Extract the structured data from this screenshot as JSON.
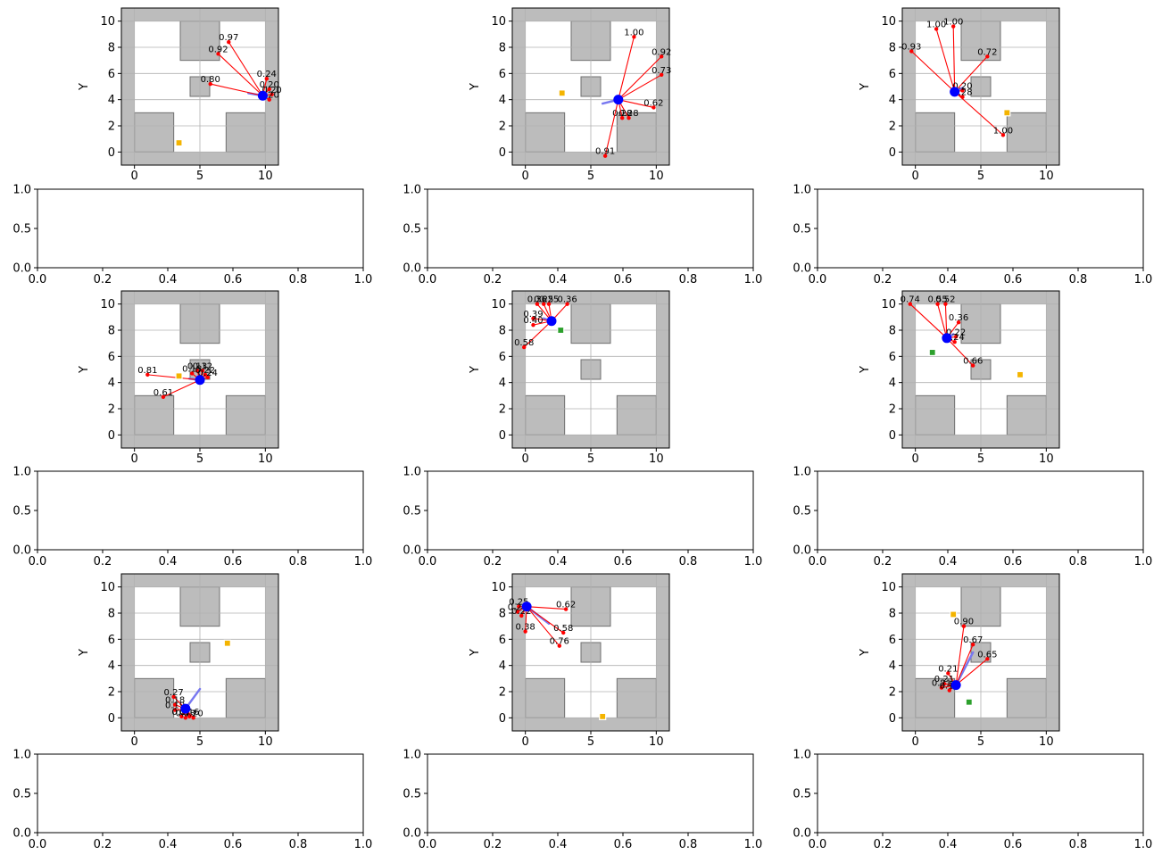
{
  "chart_data": [
    {
      "type": "scatter",
      "xlabel": "",
      "ylabel": "Y",
      "xlim": [
        -1,
        11
      ],
      "ylim": [
        -1,
        11
      ],
      "xticks": [
        0,
        5,
        10
      ],
      "yticks": [
        0,
        2,
        4,
        6,
        8,
        10
      ],
      "grid": true,
      "robot": {
        "x": 9.8,
        "y": 4.3,
        "heading": [
          8.7,
          4.5
        ]
      },
      "goal": {
        "x": 3.4,
        "y": 0.7,
        "color": "#f4b400"
      },
      "waypoint": null,
      "rays": [
        {
          "x": 7.2,
          "y": 8.4,
          "label": "0.97"
        },
        {
          "x": 6.4,
          "y": 7.5,
          "label": "0.92"
        },
        {
          "x": 5.8,
          "y": 5.2,
          "label": "0.80"
        },
        {
          "x": 10.1,
          "y": 5.6,
          "label": "0.24"
        },
        {
          "x": 10.3,
          "y": 4.8,
          "label": "0.20"
        },
        {
          "x": 10.5,
          "y": 4.4,
          "label": "0.20"
        },
        {
          "x": 10.3,
          "y": 4.0,
          "label": "0.20"
        }
      ]
    },
    {
      "type": "scatter",
      "xlabel": "",
      "ylabel": "Y",
      "xlim": [
        -1,
        11
      ],
      "ylim": [
        -1,
        11
      ],
      "xticks": [
        0,
        5,
        10
      ],
      "yticks": [
        0,
        2,
        4,
        6,
        8,
        10
      ],
      "grid": true,
      "robot": {
        "x": 7.1,
        "y": 4.0,
        "heading": [
          5.9,
          3.7
        ]
      },
      "goal": {
        "x": 2.8,
        "y": 4.5,
        "color": "#f4b400"
      },
      "waypoint": null,
      "rays": [
        {
          "x": 8.3,
          "y": 8.8,
          "label": "1.00"
        },
        {
          "x": 10.4,
          "y": 7.3,
          "label": "0.92"
        },
        {
          "x": 10.4,
          "y": 5.9,
          "label": "0.73"
        },
        {
          "x": 9.8,
          "y": 3.4,
          "label": "0.62"
        },
        {
          "x": 7.9,
          "y": 2.6,
          "label": "0.28"
        },
        {
          "x": 7.4,
          "y": 2.6,
          "label": "0.28"
        },
        {
          "x": 6.1,
          "y": -0.3,
          "label": "0.91"
        }
      ]
    },
    {
      "type": "scatter",
      "xlabel": "",
      "ylabel": "Y",
      "xlim": [
        -1,
        11
      ],
      "ylim": [
        -1,
        11
      ],
      "xticks": [
        0,
        5,
        10
      ],
      "yticks": [
        0,
        2,
        4,
        6,
        8,
        10
      ],
      "grid": true,
      "robot": {
        "x": 3.0,
        "y": 4.6,
        "heading": [
          3.6,
          4.9
        ]
      },
      "goal": {
        "x": 7.0,
        "y": 3.0,
        "color": "#f4b400"
      },
      "waypoint": null,
      "rays": [
        {
          "x": 2.9,
          "y": 9.6,
          "label": "1.00"
        },
        {
          "x": 1.6,
          "y": 9.4,
          "label": "1.00"
        },
        {
          "x": -0.3,
          "y": 7.7,
          "label": "0.93"
        },
        {
          "x": 5.5,
          "y": 7.3,
          "label": "0.72"
        },
        {
          "x": 3.6,
          "y": 4.7,
          "label": "0.20"
        },
        {
          "x": 3.6,
          "y": 4.2,
          "label": "0.28"
        },
        {
          "x": 6.7,
          "y": 1.3,
          "label": "1.00"
        }
      ]
    },
    {
      "type": "scatter",
      "xlabel": "",
      "ylabel": "Y",
      "xlim": [
        -1,
        11
      ],
      "ylim": [
        -1,
        11
      ],
      "xticks": [
        0,
        5,
        10
      ],
      "yticks": [
        0,
        2,
        4,
        6,
        8,
        10
      ],
      "grid": true,
      "robot": {
        "x": 5.0,
        "y": 4.2,
        "heading": [
          4.2,
          4.3
        ]
      },
      "goal": {
        "x": 3.4,
        "y": 4.5,
        "color": "#f4b400"
      },
      "waypoint": null,
      "rays": [
        {
          "x": 1.0,
          "y": 4.6,
          "label": "0.81"
        },
        {
          "x": 2.2,
          "y": 2.9,
          "label": "0.61"
        },
        {
          "x": 4.4,
          "y": 4.7,
          "label": "0.18"
        },
        {
          "x": 4.8,
          "y": 4.9,
          "label": "0.13"
        },
        {
          "x": 5.2,
          "y": 4.9,
          "label": "0.12"
        },
        {
          "x": 5.4,
          "y": 4.6,
          "label": "0.22"
        },
        {
          "x": 5.6,
          "y": 4.4,
          "label": "0.24"
        }
      ]
    },
    {
      "type": "scatter",
      "xlabel": "",
      "ylabel": "Y",
      "xlim": [
        -1,
        11
      ],
      "ylim": [
        -1,
        11
      ],
      "xticks": [
        0,
        5,
        10
      ],
      "yticks": [
        0,
        2,
        4,
        6,
        8,
        10
      ],
      "grid": true,
      "robot": {
        "x": 2.0,
        "y": 8.7,
        "heading": [
          1.4,
          8.9
        ]
      },
      "goal": {
        "x": null,
        "y": null,
        "color": "#f4b400"
      },
      "waypoint": {
        "x": 2.7,
        "y": 8.0,
        "color": "#2ca02c"
      },
      "rays": [
        {
          "x": 0.9,
          "y": 10.0,
          "label": "0.36"
        },
        {
          "x": 1.4,
          "y": 10.0,
          "label": "0.25"
        },
        {
          "x": 1.8,
          "y": 10.0,
          "label": "0.25"
        },
        {
          "x": 3.2,
          "y": 10.0,
          "label": "0.36"
        },
        {
          "x": 0.6,
          "y": 8.9,
          "label": "0.39"
        },
        {
          "x": 0.6,
          "y": 8.4,
          "label": "0.40"
        },
        {
          "x": -0.1,
          "y": 6.7,
          "label": "0.58"
        }
      ]
    },
    {
      "type": "scatter",
      "xlabel": "",
      "ylabel": "Y",
      "xlim": [
        -1,
        11
      ],
      "ylim": [
        -1,
        11
      ],
      "xticks": [
        0,
        5,
        10
      ],
      "yticks": [
        0,
        2,
        4,
        6,
        8,
        10
      ],
      "grid": true,
      "robot": {
        "x": 2.4,
        "y": 7.4,
        "heading": [
          2.9,
          7.7
        ]
      },
      "goal": {
        "x": 8.0,
        "y": 4.6,
        "color": "#f4b400"
      },
      "waypoint": {
        "x": 1.3,
        "y": 6.3,
        "color": "#2ca02c"
      },
      "rays": [
        {
          "x": -0.4,
          "y": 10.0,
          "label": "0.74"
        },
        {
          "x": 1.7,
          "y": 10.0,
          "label": "0.55"
        },
        {
          "x": 2.3,
          "y": 10.0,
          "label": "0.52"
        },
        {
          "x": 3.3,
          "y": 8.6,
          "label": "0.36"
        },
        {
          "x": 3.1,
          "y": 7.5,
          "label": "0.22"
        },
        {
          "x": 3.0,
          "y": 7.1,
          "label": "0.24"
        },
        {
          "x": 4.4,
          "y": 5.3,
          "label": "0.66"
        }
      ]
    },
    {
      "type": "scatter",
      "xlabel": "",
      "ylabel": "Y",
      "xlim": [
        -1,
        11
      ],
      "ylim": [
        -1,
        11
      ],
      "xticks": [
        0,
        5,
        10
      ],
      "yticks": [
        0,
        2,
        4,
        6,
        8,
        10
      ],
      "grid": true,
      "robot": {
        "x": 3.9,
        "y": 0.7,
        "heading": [
          5.0,
          2.2
        ]
      },
      "goal": {
        "x": 7.1,
        "y": 5.7,
        "color": "#f4b400"
      },
      "waypoint": null,
      "rays": [
        {
          "x": 3.0,
          "y": 1.6,
          "label": "0.27"
        },
        {
          "x": 3.1,
          "y": 1.0,
          "label": "0.18"
        },
        {
          "x": 3.1,
          "y": 0.6,
          "label": "0.19"
        },
        {
          "x": 3.6,
          "y": 0.1,
          "label": "0.21"
        },
        {
          "x": 3.9,
          "y": 0.0,
          "label": "0.18"
        },
        {
          "x": 4.2,
          "y": 0.1,
          "label": "0.16"
        },
        {
          "x": 4.5,
          "y": 0.0,
          "label": "0.20"
        }
      ]
    },
    {
      "type": "scatter",
      "xlabel": "",
      "ylabel": "Y",
      "xlim": [
        -1,
        11
      ],
      "ylim": [
        -1,
        11
      ],
      "xticks": [
        0,
        5,
        10
      ],
      "yticks": [
        0,
        2,
        4,
        6,
        8,
        10
      ],
      "grid": true,
      "robot": {
        "x": 0.1,
        "y": 8.5,
        "heading": [
          1.8,
          7.2
        ]
      },
      "goal": {
        "x": 5.9,
        "y": 0.1,
        "color": "#f4b400"
      },
      "waypoint": null,
      "rays": [
        {
          "x": -0.5,
          "y": 8.5,
          "label": "0.25"
        },
        {
          "x": -0.6,
          "y": 8.1,
          "label": "0.26"
        },
        {
          "x": -0.3,
          "y": 7.8,
          "label": "0.22"
        },
        {
          "x": 0.0,
          "y": 6.6,
          "label": "0.38"
        },
        {
          "x": 3.1,
          "y": 8.3,
          "label": "0.62"
        },
        {
          "x": 2.9,
          "y": 6.5,
          "label": "0.58"
        },
        {
          "x": 2.6,
          "y": 5.5,
          "label": "0.76"
        }
      ]
    },
    {
      "type": "scatter",
      "xlabel": "",
      "ylabel": "Y",
      "xlim": [
        -1,
        11
      ],
      "ylim": [
        -1,
        11
      ],
      "xticks": [
        0,
        5,
        10
      ],
      "yticks": [
        0,
        2,
        4,
        6,
        8,
        10
      ],
      "grid": true,
      "robot": {
        "x": 3.1,
        "y": 2.5,
        "heading": [
          4.4,
          5.0
        ]
      },
      "goal": {
        "x": 2.9,
        "y": 7.9,
        "color": "#f4b400"
      },
      "waypoint": {
        "x": 4.1,
        "y": 1.2,
        "color": "#2ca02c"
      },
      "rays": [
        {
          "x": 3.7,
          "y": 7.0,
          "label": "0.90"
        },
        {
          "x": 4.4,
          "y": 5.6,
          "label": "0.67"
        },
        {
          "x": 5.5,
          "y": 4.5,
          "label": "0.65"
        },
        {
          "x": 2.5,
          "y": 3.4,
          "label": "0.21"
        },
        {
          "x": 2.2,
          "y": 2.6,
          "label": "0.21"
        },
        {
          "x": 2.0,
          "y": 2.3,
          "label": "0.21"
        },
        {
          "x": 2.6,
          "y": 2.1,
          "label": "0.14"
        }
      ]
    }
  ],
  "empty_axes": {
    "xlim": [
      0,
      1
    ],
    "ylim": [
      0,
      1
    ],
    "xticks": [
      "0.0",
      "0.2",
      "0.4",
      "0.6",
      "0.8",
      "1.0"
    ],
    "yticks": [
      "0.0",
      "0.5",
      "1.0"
    ]
  },
  "map": {
    "obstacle_color": "#bcbcbc",
    "obstacles": [
      {
        "x0": -1.0,
        "y0": 10.0,
        "x1": 11.0,
        "y1": 11.0
      },
      {
        "x0": -1.0,
        "y0": -1.0,
        "x1": 11.0,
        "y1": 0.0
      },
      {
        "x0": -1.0,
        "y0": 0.0,
        "x1": 0.0,
        "y1": 10.0
      },
      {
        "x0": 10.0,
        "y0": 0.0,
        "x1": 11.0,
        "y1": 10.0
      },
      {
        "x0": 3.5,
        "y0": 7.0,
        "x1": 6.5,
        "y1": 10.0
      },
      {
        "x0": 4.25,
        "y0": 4.25,
        "x1": 5.75,
        "y1": 5.75
      },
      {
        "x0": 0.0,
        "y0": 0.0,
        "x1": 3.0,
        "y1": 3.0
      },
      {
        "x0": 7.0,
        "y0": 0.0,
        "x1": 10.0,
        "y1": 3.0
      }
    ]
  },
  "colors": {
    "robot": "#0000ff",
    "ray": "#ff0000",
    "heading": "#7878f0",
    "grid": "#b0b0b0"
  }
}
